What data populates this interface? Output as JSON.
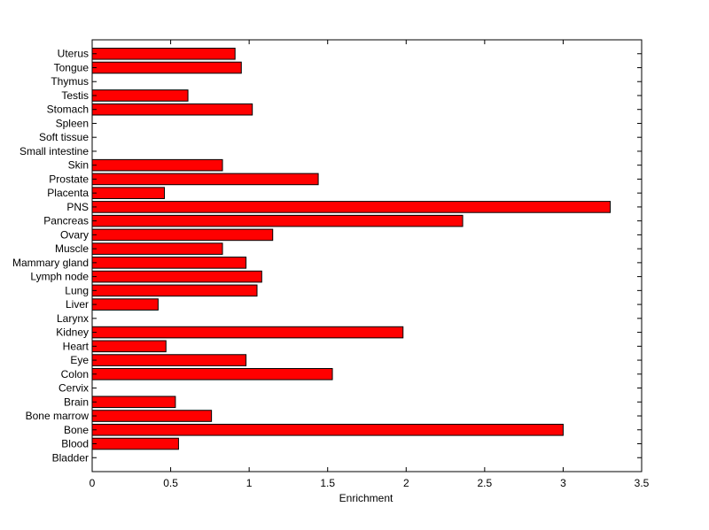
{
  "chart_data": {
    "type": "bar",
    "orientation": "horizontal",
    "xlabel": "Enrichment",
    "xlim": [
      0,
      3.5
    ],
    "xticks": [
      0,
      0.5,
      1,
      1.5,
      2,
      2.5,
      3,
      3.5
    ],
    "xtick_labels": [
      "0",
      "0.5",
      "1",
      "1.5",
      "2",
      "2.5",
      "3",
      "3.5"
    ],
    "grid": false,
    "categories": [
      "Bladder",
      "Blood",
      "Bone",
      "Bone marrow",
      "Brain",
      "Cervix",
      "Colon",
      "Eye",
      "Heart",
      "Kidney",
      "Larynx",
      "Liver",
      "Lung",
      "Lymph node",
      "Mammary gland",
      "Muscle",
      "Ovary",
      "Pancreas",
      "PNS",
      "Placenta",
      "Prostate",
      "Skin",
      "Small intestine",
      "Soft tissue",
      "Spleen",
      "Stomach",
      "Testis",
      "Thymus",
      "Tongue",
      "Uterus"
    ],
    "values": [
      0,
      0.55,
      3.0,
      0.76,
      0.53,
      0,
      1.53,
      0.98,
      0.47,
      1.98,
      0,
      0.42,
      1.05,
      1.08,
      0.98,
      0.83,
      1.15,
      2.36,
      3.3,
      0.46,
      1.44,
      0.83,
      0,
      0,
      0,
      1.02,
      0.61,
      0,
      0.95,
      0.91
    ],
    "bar_color": "#ff0000",
    "edge_color": "#000000"
  }
}
